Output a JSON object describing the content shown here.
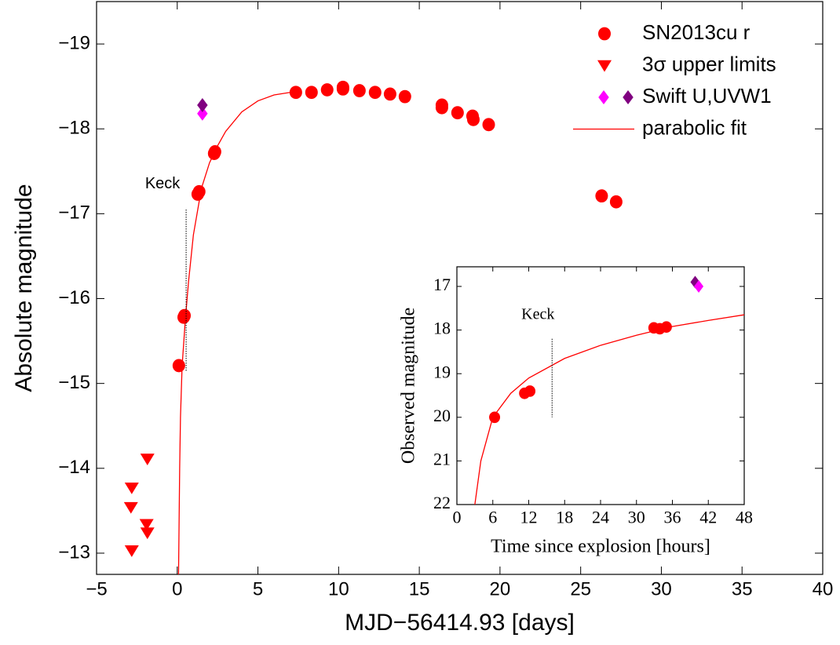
{
  "chart_data": [
    {
      "type": "scatter",
      "xlabel": "MJD−56414.93 [days]",
      "ylabel": "Absolute magnitude",
      "xlim": [
        -5,
        40
      ],
      "ylim": [
        -12.75,
        -19.5
      ],
      "xticks": [
        {
          "value": -5,
          "label": "−5"
        },
        0,
        5,
        10,
        15,
        20,
        25,
        30,
        35,
        40
      ],
      "yticks": [
        {
          "value": -19,
          "label": "−19"
        },
        {
          "value": -18,
          "label": "−18"
        },
        {
          "value": -17,
          "label": "−17"
        },
        {
          "value": -16,
          "label": "−16"
        },
        {
          "value": -15,
          "label": "−15"
        },
        {
          "value": -14,
          "label": "−14"
        },
        {
          "value": -13,
          "label": "−13"
        }
      ],
      "grid": false,
      "legend": "upper-right",
      "series": [
        {
          "name": "SN2013cu r",
          "marker": "circle",
          "color": "#ff0000",
          "x": [
            0.1,
            0.4,
            0.45,
            1.27,
            1.36,
            2.29,
            2.34,
            7.35,
            8.32,
            9.29,
            10.27,
            10.27,
            11.29,
            12.26,
            13.19,
            14.11,
            16.4,
            16.4,
            17.37,
            18.3,
            18.35,
            19.3,
            26.3,
            27.2
          ],
          "values": [
            -15.21,
            -15.78,
            -15.8,
            -17.23,
            -17.26,
            -17.71,
            -17.73,
            -18.43,
            -18.43,
            -18.46,
            -18.47,
            -18.49,
            -18.45,
            -18.43,
            -18.41,
            -18.38,
            -18.28,
            -18.25,
            -18.19,
            -18.15,
            -18.11,
            -18.05,
            -17.21,
            -17.14
          ]
        },
        {
          "name": "3σ upper limits",
          "marker": "triangle-down",
          "color": "#ff0000",
          "x": [
            -2.82,
            -2.87,
            -2.82,
            -1.85,
            -1.9,
            -1.85
          ],
          "values": [
            -13.77,
            -13.54,
            -13.03,
            -14.11,
            -13.34,
            -13.24
          ]
        },
        {
          "name": "Swift U,UVW1",
          "marker": "diamond",
          "colors": [
            "#ff00ff",
            "#800080"
          ],
          "x": [
            1.56,
            1.56
          ],
          "values": [
            -18.18,
            -18.28
          ]
        },
        {
          "name": "parabolic fit",
          "marker": "line",
          "color": "#ff0000",
          "x": [
            0.08,
            0.15,
            0.2,
            0.3,
            0.5,
            0.7,
            1.0,
            1.5,
            2.0,
            2.5,
            3.0,
            4.0,
            5.0,
            6.0,
            7.0,
            7.5
          ],
          "values": [
            -12.75,
            -14.0,
            -14.6,
            -15.2,
            -15.75,
            -16.2,
            -16.75,
            -17.3,
            -17.6,
            -17.8,
            -17.97,
            -18.2,
            -18.33,
            -18.4,
            -18.43,
            -18.43
          ]
        }
      ],
      "annotations": [
        {
          "text": "Keck",
          "x": 0.55,
          "y": [
            -17.05,
            -15.15
          ]
        }
      ]
    },
    {
      "type": "scatter",
      "xlabel": "Time since explosion [hours]",
      "ylabel": "Observed magnitude",
      "xlim": [
        0,
        48
      ],
      "ylim": [
        22,
        16.55
      ],
      "xticks": [
        0,
        6,
        12,
        18,
        24,
        30,
        36,
        42,
        48
      ],
      "yticks": [
        17,
        18,
        19,
        20,
        21,
        22
      ],
      "grid": false,
      "series": [
        {
          "marker": "circle",
          "color": "#ff0000",
          "x": [
            6.3,
            11.3,
            12.2,
            32.9,
            33.9,
            35.0
          ],
          "values": [
            20.0,
            19.45,
            19.4,
            17.95,
            17.97,
            17.93
          ]
        },
        {
          "marker": "diamond",
          "colors": [
            "#800080",
            "#ff00ff"
          ],
          "x": [
            39.8,
            40.4
          ],
          "values": [
            16.9,
            17.0
          ]
        },
        {
          "marker": "line",
          "color": "#ff0000",
          "x": [
            3,
            4,
            6,
            9,
            12,
            18,
            24,
            30,
            36,
            42,
            48
          ],
          "values": [
            22.0,
            21.0,
            20.0,
            19.45,
            19.1,
            18.65,
            18.35,
            18.12,
            17.92,
            17.78,
            17.65
          ]
        }
      ],
      "annotations": [
        {
          "text": "Keck",
          "x": 15.9,
          "y": [
            18.2,
            20.0
          ]
        }
      ]
    }
  ]
}
